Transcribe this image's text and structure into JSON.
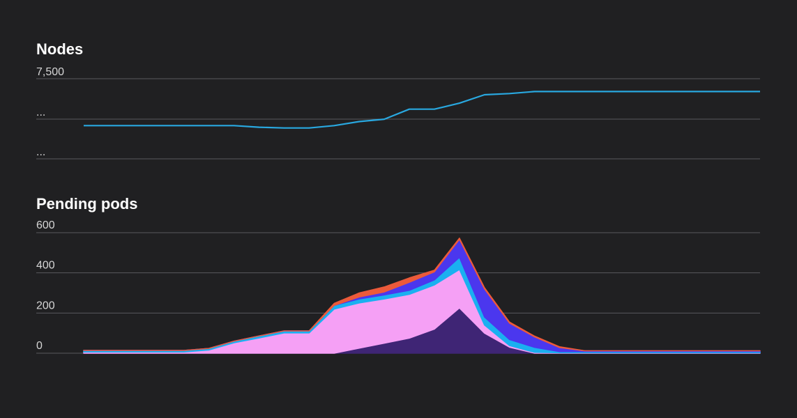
{
  "chart_data": [
    {
      "type": "line",
      "title": "Nodes",
      "xlabel": "",
      "ylabel": "",
      "x": [
        0,
        1,
        2,
        3,
        4,
        5,
        6,
        7,
        8,
        9,
        10,
        11,
        12,
        13,
        14,
        15,
        16,
        17,
        18,
        19,
        20,
        21,
        22,
        23,
        24,
        25,
        26,
        27
      ],
      "ytick_labels": [
        "7,500",
        "...",
        "..."
      ],
      "grid": true,
      "legend": "none",
      "series": [
        {
          "color": "#29a8e0",
          "values": [
            0.83,
            0.83,
            0.83,
            0.83,
            0.83,
            0.83,
            0.83,
            0.79,
            0.77,
            0.77,
            0.83,
            0.93,
            0.99,
            1.24,
            1.24,
            1.39,
            1.6,
            1.63,
            1.68,
            1.68,
            1.68,
            1.68,
            1.68,
            1.68,
            1.68,
            1.68,
            1.68,
            1.68
          ]
        }
      ],
      "ylim": [
        0,
        2
      ]
    },
    {
      "type": "area",
      "stacked": true,
      "title": "Pending pods",
      "xlabel": "",
      "ylabel": "",
      "x": [
        0,
        1,
        2,
        3,
        4,
        5,
        6,
        7,
        8,
        9,
        10,
        11,
        12,
        13,
        14,
        15,
        16,
        17,
        18,
        19,
        20,
        21,
        22,
        23,
        24,
        25,
        26,
        27
      ],
      "ylim": [
        0,
        600
      ],
      "yticks": [
        0,
        200,
        400,
        600
      ],
      "ytick_labels": [
        "0",
        "200",
        "400",
        "600"
      ],
      "grid": true,
      "legend": "none",
      "series": [
        {
          "color": "#3f2575",
          "values": [
            0,
            0,
            0,
            0,
            0,
            0,
            0,
            0,
            0,
            0,
            0,
            25,
            50,
            75,
            120,
            225,
            100,
            30,
            0,
            0,
            0,
            0,
            0,
            0,
            0,
            0,
            0,
            0
          ]
        },
        {
          "color": "#f5a0f5",
          "values": [
            6,
            6,
            6,
            6,
            6,
            16,
            52,
            76,
            101,
            101,
            220,
            225,
            220,
            218,
            220,
            192,
            40,
            8,
            4,
            2,
            2,
            2,
            2,
            2,
            2,
            2,
            2,
            2
          ]
        },
        {
          "color": "#1ab0f0",
          "values": [
            8,
            8,
            8,
            8,
            8,
            8,
            8,
            10,
            10,
            10,
            18,
            20,
            20,
            20,
            25,
            60,
            40,
            30,
            25,
            6,
            6,
            6,
            6,
            6,
            6,
            6,
            6,
            6
          ]
        },
        {
          "color": "#4b37ee",
          "values": [
            0,
            0,
            0,
            0,
            0,
            0,
            0,
            0,
            0,
            0,
            0,
            10,
            15,
            40,
            40,
            90,
            140,
            82,
            52,
            20,
            4,
            4,
            4,
            4,
            4,
            4,
            4,
            4
          ]
        },
        {
          "color": "#ec5a3a",
          "values": [
            0,
            0,
            0,
            0,
            0,
            0,
            0,
            0,
            0,
            0,
            10,
            20,
            25,
            22,
            8,
            6,
            6,
            5,
            4,
            4,
            0,
            0,
            0,
            0,
            0,
            0,
            0,
            0
          ]
        }
      ]
    }
  ]
}
